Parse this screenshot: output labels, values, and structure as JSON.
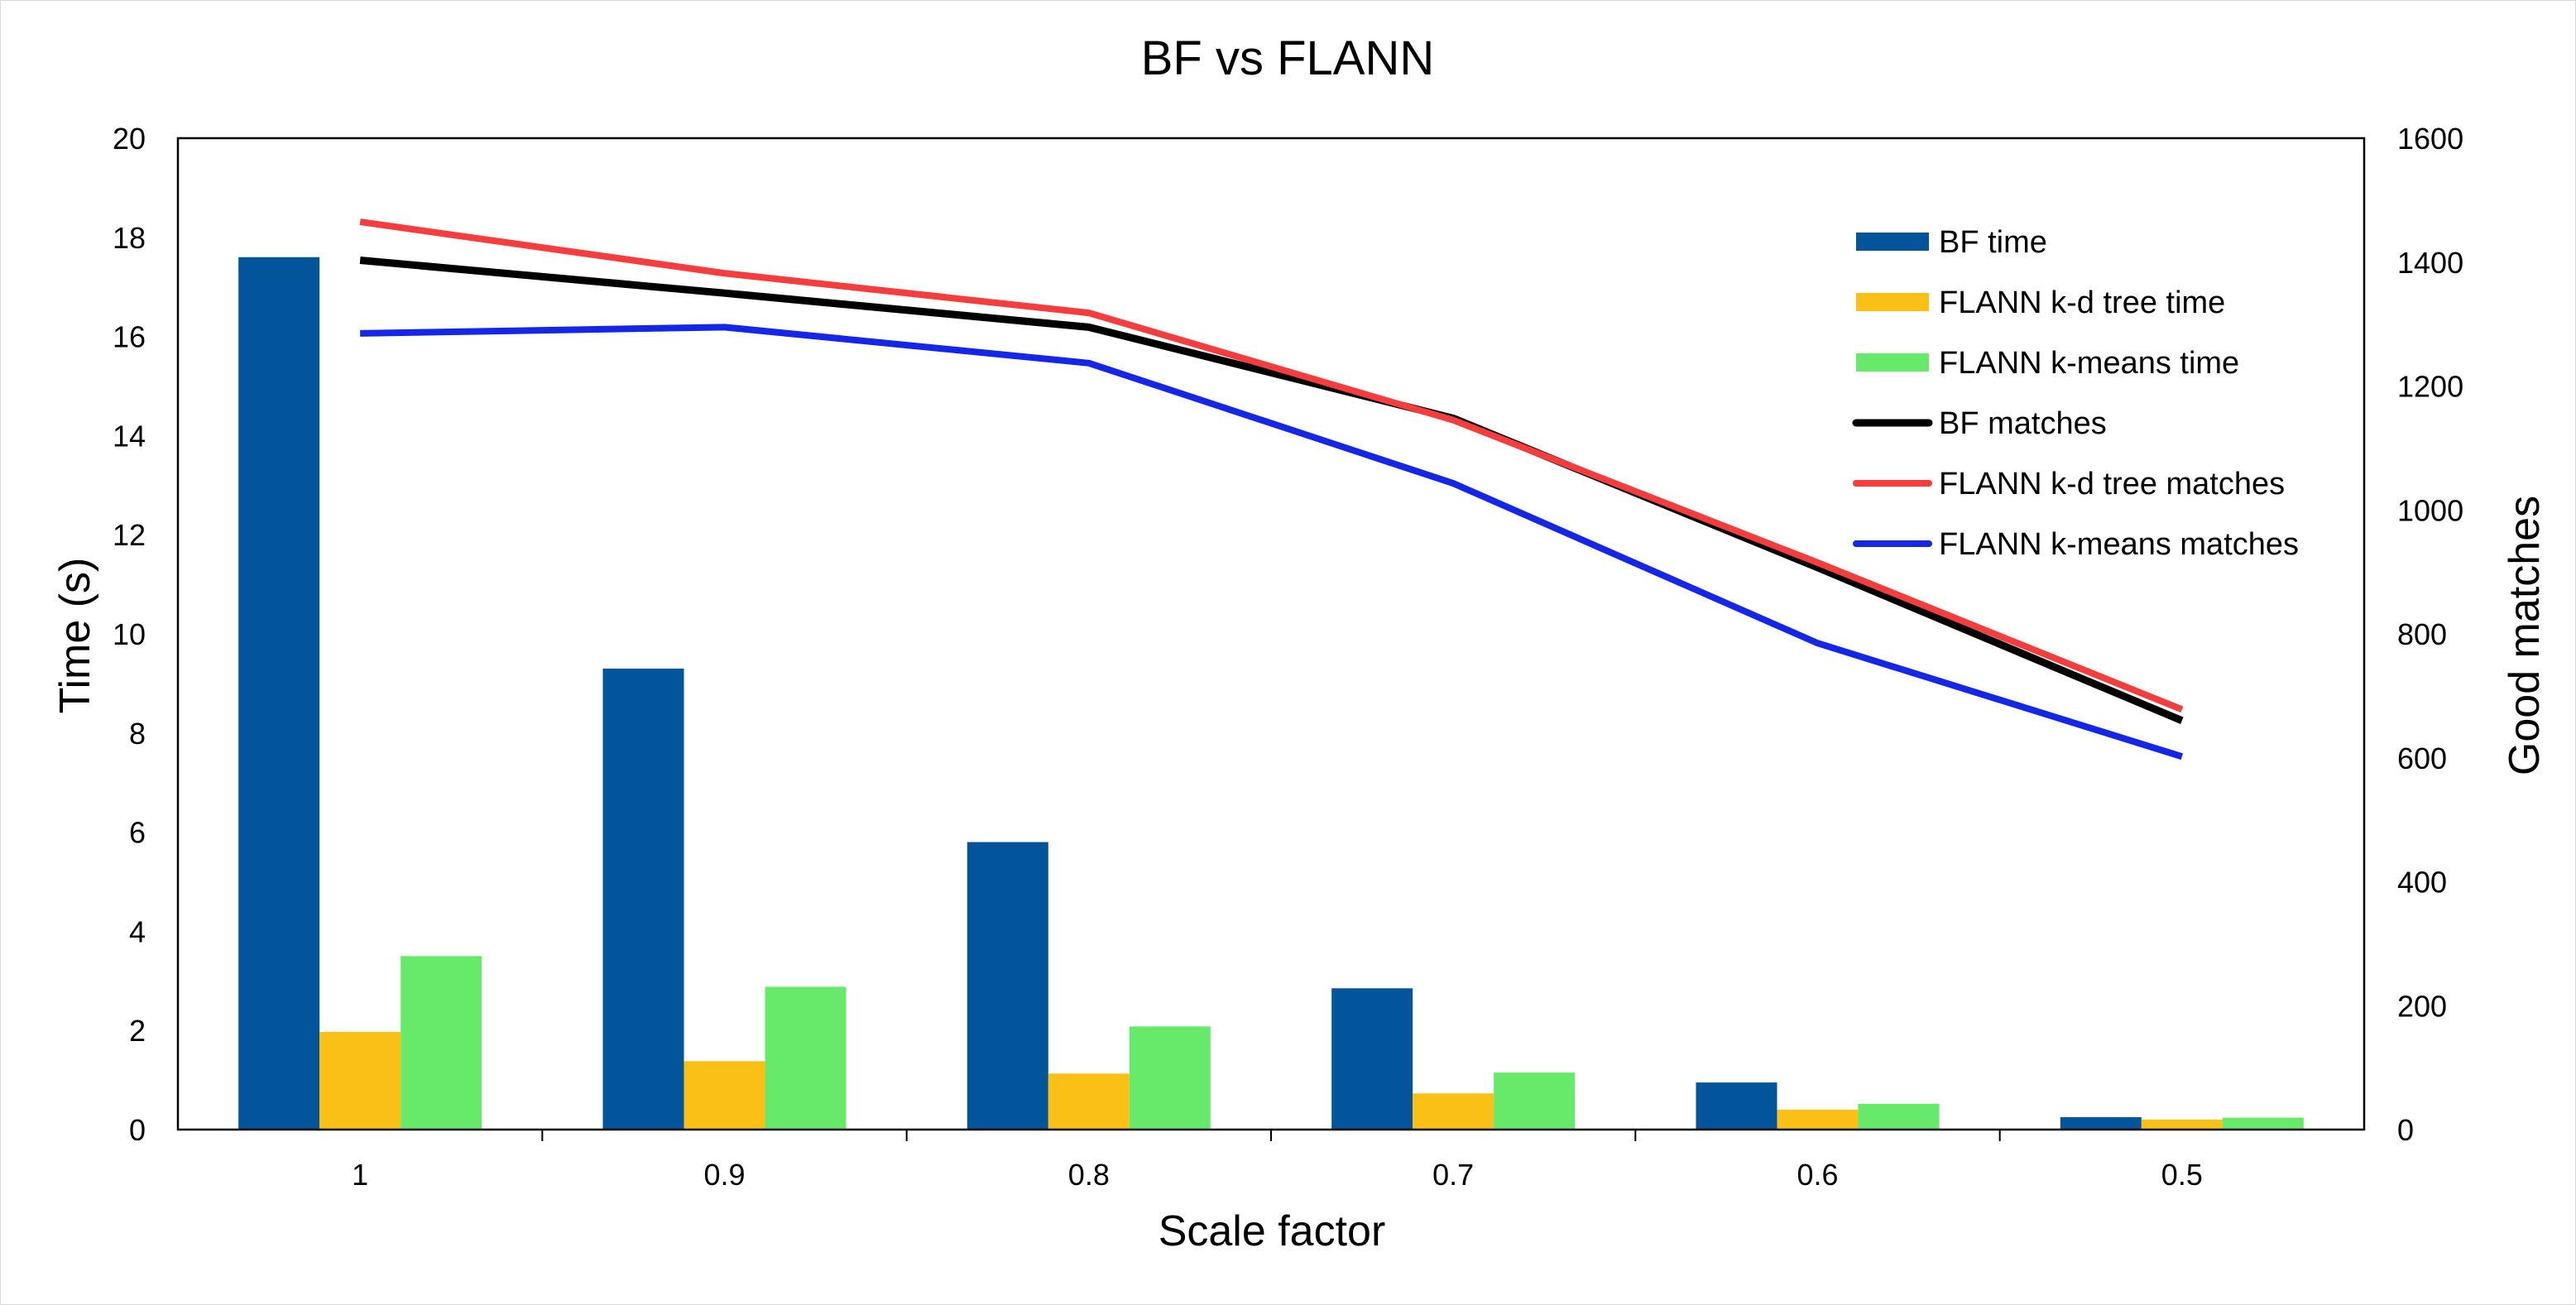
{
  "chart_data": {
    "type": "bar",
    "title": "BF vs FLANN",
    "xlabel": "Scale factor",
    "ylabel": "Time (s)",
    "y2label": "Good matches",
    "categories": [
      "1",
      "0.9",
      "0.8",
      "0.7",
      "0.6",
      "0.5"
    ],
    "ylim": [
      0,
      20
    ],
    "y2lim": [
      0,
      1600
    ],
    "yticks": [
      "0",
      "2",
      "4",
      "6",
      "8",
      "10",
      "12",
      "14",
      "16",
      "18",
      "20"
    ],
    "y2ticks": [
      "0",
      "200",
      "400",
      "600",
      "800",
      "1000",
      "1200",
      "1400",
      "1600"
    ],
    "grid": false,
    "legend_position": "top-right",
    "series": [
      {
        "name": "BF time",
        "kind": "bar",
        "axis": "left",
        "color": "#02559a",
        "values": [
          17.6,
          9.3,
          5.8,
          2.85,
          0.95,
          0.25
        ]
      },
      {
        "name": "FLANN k-d tree time",
        "kind": "bar",
        "axis": "left",
        "color": "#fac016",
        "values": [
          1.97,
          1.38,
          1.13,
          0.73,
          0.4,
          0.2
        ]
      },
      {
        "name": "FLANN k-means time",
        "kind": "bar",
        "axis": "left",
        "color": "#67ea69",
        "values": [
          3.5,
          2.88,
          2.08,
          1.15,
          0.52,
          0.24
        ]
      },
      {
        "name": "BF matches",
        "kind": "line",
        "axis": "right",
        "color": "#000000",
        "values": [
          1403,
          1350,
          1295,
          1148,
          907,
          660
        ]
      },
      {
        "name": "FLANN k-d tree matches",
        "kind": "line",
        "axis": "right",
        "color": "#f53d3d",
        "values": [
          1465,
          1382,
          1318,
          1145,
          915,
          678
        ]
      },
      {
        "name": "FLANN k-means matches",
        "kind": "line",
        "axis": "right",
        "color": "#1426e8",
        "values": [
          1285,
          1295,
          1237,
          1043,
          785,
          602
        ]
      }
    ]
  }
}
